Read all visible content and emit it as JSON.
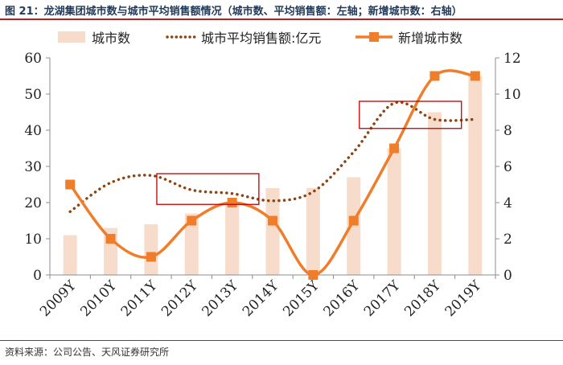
{
  "title": "图 21：龙湖集团城市数与城市平均销售额情况（城市数、平均销售额：左轴；新增城市数：右轴）",
  "source": "资料来源：公司公告、天风证券研究所",
  "colors": {
    "bar": "#f8dccb",
    "dotted_line": "#8b4513",
    "solid_line": "#f07d2a",
    "highlight_box": "#c00000",
    "title": "#1f3a5a",
    "rule": "#b22222"
  },
  "chart_data": {
    "type": "bar+line",
    "categories": [
      "2009Y",
      "2010Y",
      "2011Y",
      "2012Y",
      "2013Y",
      "2014Y",
      "2015Y",
      "2016Y",
      "2017Y",
      "2018Y",
      "2019Y"
    ],
    "series": [
      {
        "name": "城市数",
        "type": "bar",
        "axis": "left",
        "values": [
          11,
          13,
          14,
          17,
          20,
          24,
          24,
          27,
          35,
          45,
          55
        ]
      },
      {
        "name": "城市平均销售额:亿元",
        "type": "line-dotted",
        "axis": "left",
        "values": [
          17.5,
          25.5,
          27.5,
          23.5,
          22.5,
          20.5,
          23,
          34,
          47.5,
          43,
          43
        ]
      },
      {
        "name": "新增城市数",
        "type": "line-smooth-markers",
        "axis": "right",
        "values": [
          5,
          2,
          1,
          3,
          4,
          3,
          0,
          3,
          7,
          11,
          11
        ]
      }
    ],
    "left_axis": {
      "min": 0,
      "max": 60,
      "ticks": [
        0,
        10,
        20,
        30,
        40,
        50,
        60
      ]
    },
    "right_axis": {
      "min": 0,
      "max": 12,
      "ticks": [
        0,
        2,
        4,
        6,
        8,
        10,
        12
      ]
    },
    "legend_position": "top",
    "grid": false,
    "highlight_boxes": [
      {
        "from_category": "2011Y",
        "to_category": "2014Y",
        "y_range": [
          19.5,
          28
        ]
      },
      {
        "from_category": "2016Y",
        "to_category": "2019Y",
        "y_range": [
          40.5,
          48
        ]
      }
    ]
  }
}
